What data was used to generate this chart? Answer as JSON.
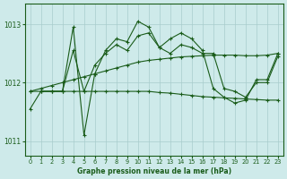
{
  "background_color": "#ceeaea",
  "line_color": "#1a5c1a",
  "grid_color": "#a8cccc",
  "title": "Graphe pression niveau de la mer (hPa)",
  "xlim": [
    -0.5,
    23.5
  ],
  "ylim": [
    1010.75,
    1013.35
  ],
  "yticks": [
    1011,
    1012,
    1013
  ],
  "xticks": [
    0,
    1,
    2,
    3,
    4,
    5,
    6,
    7,
    8,
    9,
    10,
    11,
    12,
    13,
    14,
    15,
    16,
    17,
    18,
    19,
    20,
    21,
    22,
    23
  ],
  "series": [
    {
      "x": [
        0,
        1,
        2,
        3,
        4,
        5,
        6,
        7,
        8,
        9,
        10,
        11,
        12,
        13,
        14,
        15,
        16,
        17,
        18,
        19,
        20,
        21,
        22,
        23
      ],
      "y": [
        1011.55,
        1011.85,
        1011.85,
        1011.85,
        1012.95,
        1011.1,
        1012.15,
        1012.55,
        1012.75,
        1012.7,
        1013.05,
        1012.95,
        1012.6,
        1012.75,
        1012.85,
        1012.75,
        1012.55,
        1011.9,
        1011.75,
        1011.65,
        1011.7,
        1012.05,
        1012.05,
        1012.5
      ]
    },
    {
      "x": [
        0,
        1,
        2,
        3,
        4,
        5,
        6,
        7,
        8,
        9,
        10,
        11,
        12,
        13,
        14,
        15,
        16,
        17,
        18,
        19,
        20,
        21,
        22,
        23
      ],
      "y": [
        1011.85,
        1011.9,
        1011.95,
        1012.0,
        1012.05,
        1012.1,
        1012.15,
        1012.2,
        1012.25,
        1012.3,
        1012.35,
        1012.38,
        1012.4,
        1012.42,
        1012.44,
        1012.45,
        1012.46,
        1012.47,
        1012.47,
        1012.47,
        1012.46,
        1012.46,
        1012.47,
        1012.5
      ]
    },
    {
      "x": [
        0,
        1,
        2,
        3,
        4,
        5,
        6,
        7,
        8,
        9,
        10,
        11,
        12,
        13,
        14,
        15,
        16,
        17,
        18,
        19,
        20,
        21,
        22,
        23
      ],
      "y": [
        1011.85,
        1011.85,
        1011.85,
        1011.85,
        1011.85,
        1011.85,
        1011.85,
        1011.85,
        1011.85,
        1011.85,
        1011.85,
        1011.85,
        1011.83,
        1011.82,
        1011.8,
        1011.78,
        1011.76,
        1011.75,
        1011.74,
        1011.73,
        1011.72,
        1011.71,
        1011.7,
        1011.7
      ]
    },
    {
      "x": [
        1,
        2,
        3,
        4,
        5,
        6,
        7,
        8,
        9,
        10,
        11,
        12,
        13,
        14,
        15,
        16,
        17,
        18,
        19,
        20,
        21,
        22,
        23
      ],
      "y": [
        1011.85,
        1011.85,
        1011.85,
        1012.55,
        1011.85,
        1012.3,
        1012.5,
        1012.65,
        1012.55,
        1012.8,
        1012.85,
        1012.6,
        1012.5,
        1012.65,
        1012.6,
        1012.5,
        1012.5,
        1011.9,
        1011.85,
        1011.75,
        1012.0,
        1012.0,
        1012.45
      ]
    }
  ]
}
